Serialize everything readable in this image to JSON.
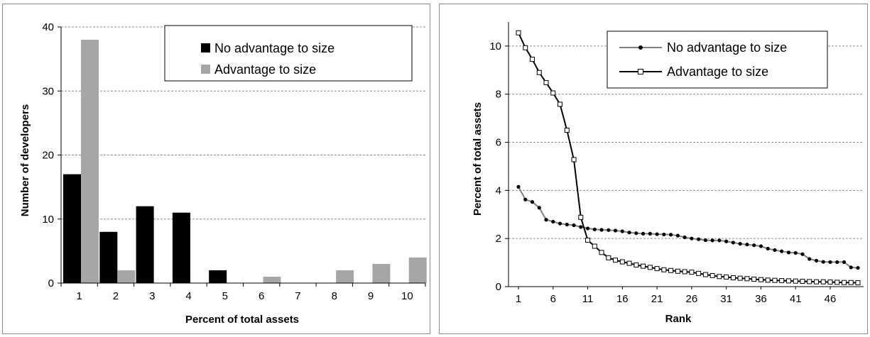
{
  "chart_data": [
    {
      "type": "bar",
      "xlabel": "Percent of total assets",
      "ylabel": "Number of developers",
      "categories": [
        "1",
        "2",
        "3",
        "4",
        "5",
        "6",
        "7",
        "8",
        "9",
        "10"
      ],
      "ylim": [
        0,
        40
      ],
      "yticks": [
        "0",
        "10",
        "20",
        "30",
        "40"
      ],
      "grid": "horizontal dashed",
      "legend": "top-right",
      "series": [
        {
          "name": "No advantage to size",
          "color": "#000000",
          "values": [
            17,
            8,
            12,
            11,
            2,
            0,
            0,
            0,
            0,
            0
          ]
        },
        {
          "name": "Advantage to size",
          "color": "#a6a6a6",
          "values": [
            38,
            2,
            0,
            0,
            0,
            1,
            0,
            2,
            3,
            4
          ]
        }
      ]
    },
    {
      "type": "line",
      "xlabel": "Rank",
      "ylabel": "Percent of total assets",
      "xticks": [
        "1",
        "6",
        "11",
        "16",
        "21",
        "26",
        "31",
        "36",
        "41",
        "46"
      ],
      "xlim": [
        1,
        50
      ],
      "ylim": [
        0,
        11
      ],
      "yticks": [
        "0",
        "2",
        "4",
        "6",
        "8",
        "10"
      ],
      "grid": "horizontal dashed",
      "legend": "top-right",
      "series": [
        {
          "name": "No advantage to size",
          "color": "#808080",
          "marker": "filled-circle",
          "values": [
            4.15,
            3.62,
            3.52,
            3.28,
            2.78,
            2.7,
            2.62,
            2.58,
            2.55,
            2.48,
            2.42,
            2.38,
            2.36,
            2.35,
            2.33,
            2.3,
            2.25,
            2.22,
            2.2,
            2.2,
            2.18,
            2.17,
            2.16,
            2.12,
            2.05,
            2.0,
            1.97,
            1.93,
            1.92,
            1.92,
            1.88,
            1.83,
            1.78,
            1.75,
            1.72,
            1.68,
            1.58,
            1.52,
            1.47,
            1.42,
            1.4,
            1.35,
            1.15,
            1.08,
            1.03,
            1.02,
            1.02,
            1.02,
            0.8,
            0.78
          ]
        },
        {
          "name": "Advantage to size",
          "color": "#000000",
          "marker": "open-square",
          "values": [
            10.55,
            9.93,
            9.45,
            8.9,
            8.48,
            8.05,
            7.58,
            6.5,
            5.28,
            2.88,
            1.93,
            1.68,
            1.42,
            1.2,
            1.1,
            1.03,
            0.97,
            0.9,
            0.85,
            0.8,
            0.75,
            0.7,
            0.67,
            0.64,
            0.62,
            0.6,
            0.55,
            0.5,
            0.46,
            0.42,
            0.4,
            0.37,
            0.35,
            0.33,
            0.31,
            0.29,
            0.27,
            0.26,
            0.25,
            0.24,
            0.23,
            0.22,
            0.21,
            0.2,
            0.2,
            0.19,
            0.18,
            0.17,
            0.17,
            0.16
          ]
        }
      ]
    }
  ]
}
